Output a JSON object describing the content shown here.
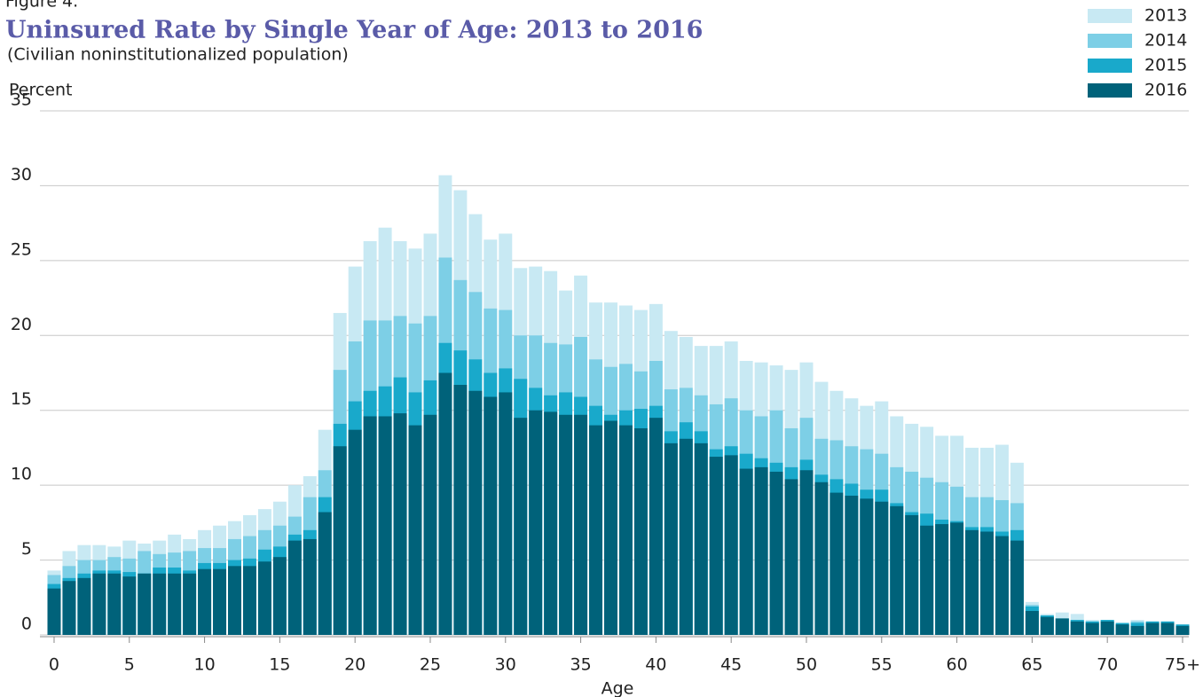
{
  "chart_data": {
    "type": "bar",
    "figure_label": "Figure 4.",
    "title": "Uninsured Rate by Single Year of Age: 2013 to 2016",
    "subtitle": "(Civilian noninstitutionalized population)",
    "y_label": "Percent",
    "x_label": "Age",
    "categories": [
      "0",
      null,
      null,
      null,
      null,
      "5",
      null,
      null,
      null,
      null,
      "10",
      null,
      null,
      null,
      null,
      "15",
      null,
      null,
      null,
      null,
      "20",
      null,
      null,
      null,
      null,
      "25",
      null,
      null,
      null,
      null,
      "30",
      null,
      null,
      null,
      null,
      "35",
      null,
      null,
      null,
      null,
      "40",
      null,
      null,
      null,
      null,
      "45",
      null,
      null,
      null,
      null,
      "50",
      null,
      null,
      null,
      null,
      "55",
      null,
      null,
      null,
      null,
      "60",
      null,
      null,
      null,
      null,
      "65",
      null,
      null,
      null,
      null,
      "70",
      null,
      null,
      null,
      null,
      "75+"
    ],
    "series": [
      {
        "name": "2013",
        "color": "#c8e9f3",
        "values": [
          4.3,
          5.6,
          6.0,
          6.0,
          5.9,
          6.3,
          6.1,
          6.3,
          6.7,
          6.4,
          7.0,
          7.3,
          7.6,
          8.0,
          8.4,
          8.9,
          10.0,
          10.6,
          13.7,
          21.5,
          24.6,
          26.3,
          27.2,
          26.3,
          25.8,
          26.8,
          30.7,
          29.7,
          28.1,
          26.4,
          26.8,
          24.5,
          24.6,
          24.3,
          23.0,
          24.0,
          22.2,
          22.2,
          22.0,
          21.7,
          22.1,
          20.3,
          19.9,
          19.3,
          19.3,
          19.6,
          18.3,
          18.2,
          18.0,
          17.7,
          18.2,
          16.9,
          16.3,
          15.8,
          15.3,
          15.6,
          14.6,
          14.1,
          13.9,
          13.3,
          13.3,
          12.5,
          12.5,
          12.7,
          11.5,
          2.2,
          1.4,
          1.5,
          1.4,
          1.0,
          1.0,
          0.8,
          1.0,
          0.9,
          0.9,
          0.6
        ]
      },
      {
        "name": "2014",
        "color": "#7dcfe6",
        "values": [
          4.0,
          4.6,
          5.0,
          5.0,
          5.2,
          5.1,
          5.6,
          5.4,
          5.5,
          5.6,
          5.8,
          5.8,
          6.4,
          6.6,
          7.0,
          7.3,
          7.9,
          9.2,
          11.0,
          17.7,
          19.6,
          21.0,
          21.0,
          21.3,
          20.8,
          21.3,
          25.2,
          23.7,
          22.9,
          21.8,
          21.7,
          20.0,
          20.0,
          19.5,
          19.4,
          19.9,
          18.4,
          17.9,
          18.1,
          17.6,
          18.3,
          16.4,
          16.5,
          16.0,
          15.4,
          15.8,
          15.0,
          14.6,
          15.0,
          13.8,
          14.5,
          13.1,
          13.0,
          12.6,
          12.4,
          12.1,
          11.2,
          10.9,
          10.5,
          10.2,
          9.9,
          9.2,
          9.2,
          9.0,
          8.8,
          2.0,
          1.3,
          1.1,
          1.0,
          0.9,
          1.0,
          0.7,
          0.9,
          0.8,
          0.8,
          0.6
        ]
      },
      {
        "name": "2015",
        "color": "#19a9cb",
        "values": [
          3.4,
          3.8,
          4.1,
          4.3,
          4.3,
          4.2,
          4.1,
          4.5,
          4.5,
          4.3,
          4.8,
          4.8,
          5.0,
          5.1,
          5.7,
          5.9,
          6.7,
          7.0,
          9.2,
          14.1,
          15.6,
          16.3,
          16.6,
          17.2,
          16.2,
          17.0,
          19.5,
          19.0,
          18.4,
          17.5,
          17.8,
          17.1,
          16.5,
          16.0,
          16.2,
          15.9,
          15.3,
          14.7,
          15.0,
          15.1,
          15.3,
          13.6,
          14.2,
          13.6,
          12.4,
          12.6,
          12.1,
          11.8,
          11.5,
          11.2,
          11.7,
          10.7,
          10.4,
          10.1,
          9.7,
          9.7,
          8.8,
          8.2,
          8.1,
          7.7,
          7.6,
          7.2,
          7.2,
          6.9,
          7.0,
          1.9,
          1.3,
          1.1,
          1.0,
          0.9,
          1.0,
          0.8,
          0.8,
          0.9,
          0.9,
          0.7
        ]
      },
      {
        "name": "2016",
        "color": "#00627a",
        "values": [
          3.1,
          3.6,
          3.8,
          4.1,
          4.1,
          3.9,
          4.1,
          4.1,
          4.1,
          4.1,
          4.4,
          4.4,
          4.6,
          4.6,
          4.9,
          5.2,
          6.3,
          6.4,
          8.2,
          12.6,
          13.7,
          14.6,
          14.6,
          14.8,
          14.0,
          14.7,
          17.5,
          16.7,
          16.3,
          15.9,
          16.2,
          14.5,
          15.0,
          14.9,
          14.7,
          14.7,
          14.0,
          14.3,
          14.0,
          13.8,
          14.5,
          12.8,
          13.1,
          12.8,
          11.9,
          12.0,
          11.1,
          11.2,
          10.9,
          10.4,
          11.0,
          10.2,
          9.5,
          9.3,
          9.1,
          8.9,
          8.6,
          8.0,
          7.3,
          7.4,
          7.5,
          7.0,
          6.9,
          6.6,
          6.3,
          1.6,
          1.2,
          1.1,
          0.9,
          0.8,
          0.9,
          0.7,
          0.6,
          0.8,
          0.8,
          0.6
        ]
      }
    ],
    "ylim": [
      0,
      35
    ],
    "yticks": [
      0,
      5,
      10,
      15,
      20,
      25,
      30,
      35
    ],
    "grid": true,
    "legend": "top-right"
  }
}
